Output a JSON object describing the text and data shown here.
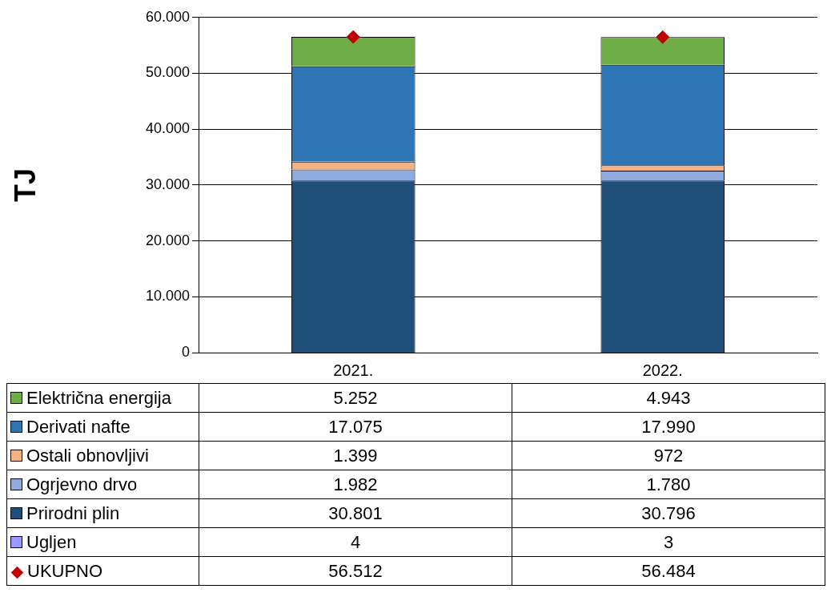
{
  "chart_data": {
    "type": "bar",
    "ylabel": "TJ",
    "categories": [
      "2021.",
      "2022."
    ],
    "stacked": true,
    "series": [
      {
        "name": "Ugljen",
        "color": "#9999ff",
        "values": [
          4,
          3
        ],
        "value_labels": [
          "4",
          "3"
        ]
      },
      {
        "name": "Prirodni plin",
        "color": "#1f4e79",
        "values": [
          30801,
          30796
        ],
        "value_labels": [
          "30.801",
          "30.796"
        ]
      },
      {
        "name": "Ogrjevno drvo",
        "color": "#8faadc",
        "values": [
          1982,
          1780
        ],
        "value_labels": [
          "1.982",
          "1.780"
        ]
      },
      {
        "name": "Ostali obnovljivi",
        "color": "#f4b183",
        "values": [
          1399,
          972
        ],
        "value_labels": [
          "1.399",
          "972"
        ]
      },
      {
        "name": "Derivati nafte",
        "color": "#2e75b6",
        "values": [
          17075,
          17990
        ],
        "value_labels": [
          "17.075",
          "17.990"
        ]
      },
      {
        "name": "Električna energija",
        "color": "#70ad47",
        "values": [
          5252,
          4943
        ],
        "value_labels": [
          "5.252",
          "4.943"
        ]
      },
      {
        "name": "UKUPNO",
        "type": "scatter",
        "color": "#c00000",
        "x": [
          "2021.",
          "2022."
        ],
        "values": [
          56512,
          56484
        ],
        "marker": "diamond",
        "value_labels": [
          "56.512",
          "56.484"
        ]
      }
    ],
    "ylim": [
      0,
      60000
    ],
    "yticks": [
      0,
      {
        "value": 10000,
        "label": "10.000"
      },
      {
        "value": 20000,
        "label": "20.000"
      },
      {
        "value": 30000,
        "label": "30.000"
      },
      {
        "value": 40000,
        "label": "40.000"
      },
      {
        "value": 50000,
        "label": "50.000"
      },
      {
        "value": 60000,
        "label": "60.000"
      }
    ],
    "grid": "y",
    "legend": "bottom"
  }
}
